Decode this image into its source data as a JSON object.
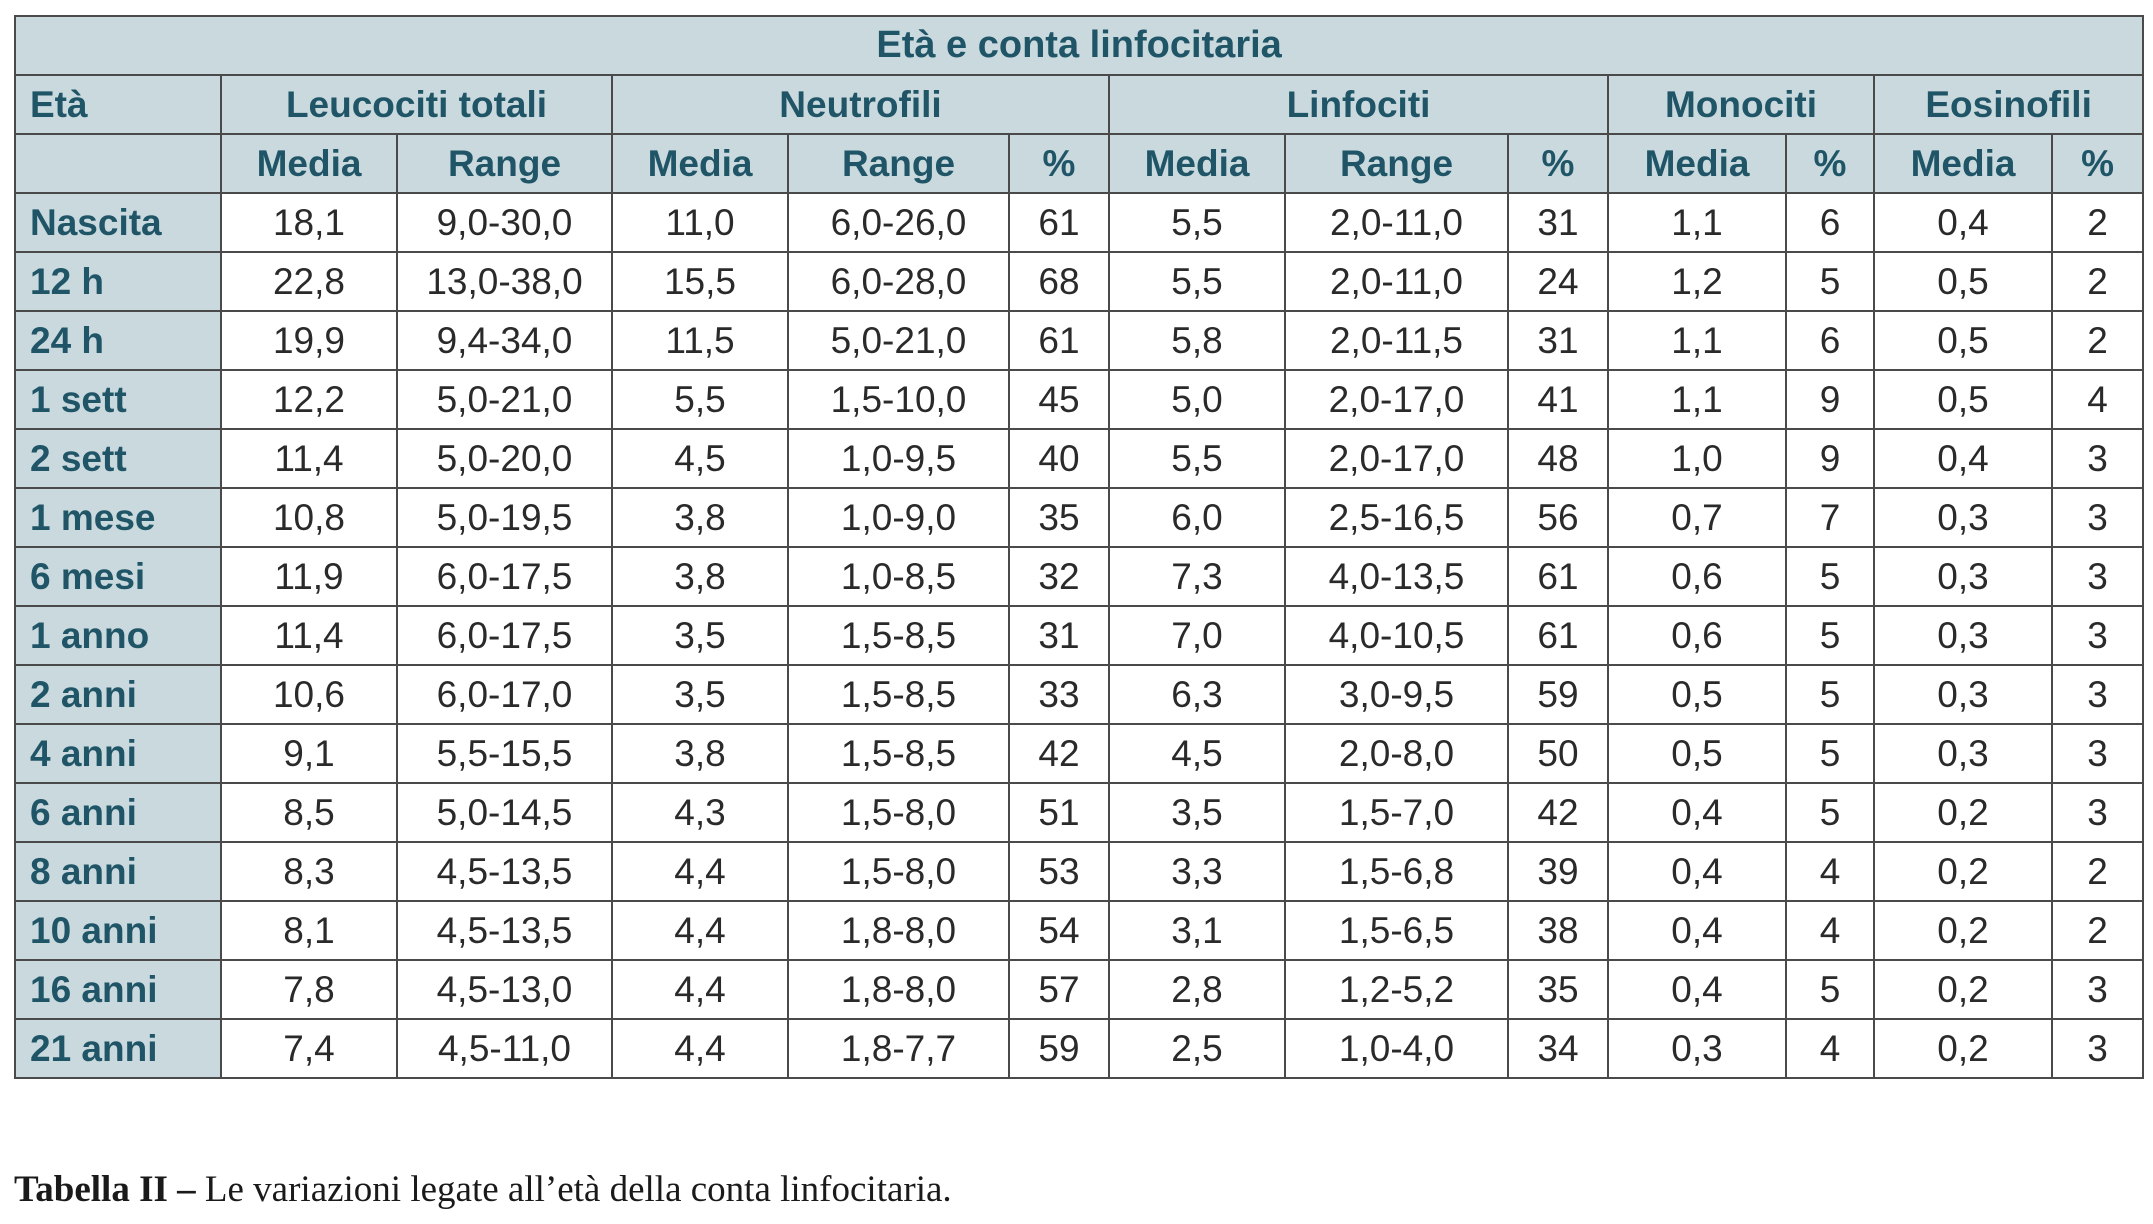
{
  "title": "Età e conta linfocitaria",
  "group_headers": {
    "age": "Età",
    "leucociti": "Leucociti totali",
    "neutrofili": "Neutrofili",
    "linfociti": "Linfociti",
    "monociti": "Monociti",
    "eosinofili": "Eosinofili"
  },
  "sub_headers": [
    "Media",
    "Range",
    "Media",
    "Range",
    "%",
    "Media",
    "Range",
    "%",
    "Media",
    "%",
    "Media",
    "%"
  ],
  "rows": [
    {
      "age": "Nascita",
      "values": [
        "18,1",
        "9,0-30,0",
        "11,0",
        "6,0-26,0",
        "61",
        "5,5",
        "2,0-11,0",
        "31",
        "1,1",
        "6",
        "0,4",
        "2"
      ]
    },
    {
      "age": "12 h",
      "values": [
        "22,8",
        "13,0-38,0",
        "15,5",
        "6,0-28,0",
        "68",
        "5,5",
        "2,0-11,0",
        "24",
        "1,2",
        "5",
        "0,5",
        "2"
      ]
    },
    {
      "age": "24 h",
      "values": [
        "19,9",
        "9,4-34,0",
        "11,5",
        "5,0-21,0",
        "61",
        "5,8",
        "2,0-11,5",
        "31",
        "1,1",
        "6",
        "0,5",
        "2"
      ]
    },
    {
      "age": "1 sett",
      "values": [
        "12,2",
        "5,0-21,0",
        "5,5",
        "1,5-10,0",
        "45",
        "5,0",
        "2,0-17,0",
        "41",
        "1,1",
        "9",
        "0,5",
        "4"
      ]
    },
    {
      "age": "2 sett",
      "values": [
        "11,4",
        "5,0-20,0",
        "4,5",
        "1,0-9,5",
        "40",
        "5,5",
        "2,0-17,0",
        "48",
        "1,0",
        "9",
        "0,4",
        "3"
      ]
    },
    {
      "age": "1 mese",
      "values": [
        "10,8",
        "5,0-19,5",
        "3,8",
        "1,0-9,0",
        "35",
        "6,0",
        "2,5-16,5",
        "56",
        "0,7",
        "7",
        "0,3",
        "3"
      ]
    },
    {
      "age": "6 mesi",
      "values": [
        "11,9",
        "6,0-17,5",
        "3,8",
        "1,0-8,5",
        "32",
        "7,3",
        "4,0-13,5",
        "61",
        "0,6",
        "5",
        "0,3",
        "3"
      ]
    },
    {
      "age": "1 anno",
      "values": [
        "11,4",
        "6,0-17,5",
        "3,5",
        "1,5-8,5",
        "31",
        "7,0",
        "4,0-10,5",
        "61",
        "0,6",
        "5",
        "0,3",
        "3"
      ]
    },
    {
      "age": "2 anni",
      "values": [
        "10,6",
        "6,0-17,0",
        "3,5",
        "1,5-8,5",
        "33",
        "6,3",
        "3,0-9,5",
        "59",
        "0,5",
        "5",
        "0,3",
        "3"
      ]
    },
    {
      "age": "4 anni",
      "values": [
        "9,1",
        "5,5-15,5",
        "3,8",
        "1,5-8,5",
        "42",
        "4,5",
        "2,0-8,0",
        "50",
        "0,5",
        "5",
        "0,3",
        "3"
      ]
    },
    {
      "age": "6 anni",
      "values": [
        "8,5",
        "5,0-14,5",
        "4,3",
        "1,5-8,0",
        "51",
        "3,5",
        "1,5-7,0",
        "42",
        "0,4",
        "5",
        "0,2",
        "3"
      ]
    },
    {
      "age": "8 anni",
      "values": [
        "8,3",
        "4,5-13,5",
        "4,4",
        "1,5-8,0",
        "53",
        "3,3",
        "1,5-6,8",
        "39",
        "0,4",
        "4",
        "0,2",
        "2"
      ]
    },
    {
      "age": "10 anni",
      "values": [
        "8,1",
        "4,5-13,5",
        "4,4",
        "1,8-8,0",
        "54",
        "3,1",
        "1,5-6,5",
        "38",
        "0,4",
        "4",
        "0,2",
        "2"
      ]
    },
    {
      "age": "16 anni",
      "values": [
        "7,8",
        "4,5-13,0",
        "4,4",
        "1,8-8,0",
        "57",
        "2,8",
        "1,2-5,2",
        "35",
        "0,4",
        "5",
        "0,2",
        "3"
      ]
    },
    {
      "age": "21 anni",
      "values": [
        "7,4",
        "4,5-11,0",
        "4,4",
        "1,8-7,7",
        "59",
        "2,5",
        "1,0-4,0",
        "34",
        "0,3",
        "4",
        "0,2",
        "3"
      ]
    }
  ],
  "caption": {
    "label": "Tabella II –",
    "text": " Le variazioni legate all’età della conta linfocitaria."
  },
  "colors": {
    "header_bg": "#c9d9de",
    "header_text": "#1f5566",
    "border": "#4a4a4a",
    "cell_text": "#2a2a2a"
  }
}
